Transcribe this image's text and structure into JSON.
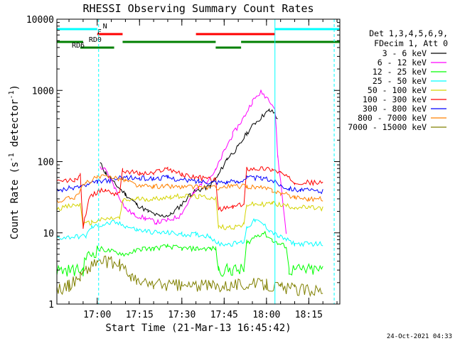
{
  "chart_data": {
    "type": "line",
    "title": "RHESSI Observing Summary Count Rates",
    "xlabel": "Start Time (21-Mar-13 16:45:42)",
    "ylabel_main": "Count Rate (s",
    "ylabel_sup1": "-1",
    "ylabel_mid": " detector",
    "ylabel_sup2": "-1",
    "ylabel_end": ")",
    "y_scale": "log",
    "ylim": [
      1,
      10000
    ],
    "xlim": [
      "16:45:42",
      "18:26:00"
    ],
    "grid": false,
    "y_ticks": [
      {
        "value": 1,
        "label": "1"
      },
      {
        "value": 10,
        "label": "10"
      },
      {
        "value": 100,
        "label": "100"
      },
      {
        "value": 1000,
        "label": "1000"
      },
      {
        "value": 10000,
        "label": "10000"
      }
    ],
    "x_ticks": [
      {
        "time": "17:00",
        "label": "17:00"
      },
      {
        "time": "17:15",
        "label": "17:15"
      },
      {
        "time": "17:30",
        "label": "17:30"
      },
      {
        "time": "17:45",
        "label": "17:45"
      },
      {
        "time": "18:00",
        "label": "18:00"
      },
      {
        "time": "18:15",
        "label": "18:15"
      }
    ],
    "legend_header": [
      "Det 1,3,4,5,6,9,",
      "FDecim 1, Att 0"
    ],
    "legend_placement": "right",
    "series": [
      {
        "name": "3 - 6 keV",
        "color": "#000000",
        "points": [
          [
            "16:45:42",
            null
          ],
          [
            "16:59:30",
            null
          ],
          [
            "17:01",
            95
          ],
          [
            "17:03",
            70
          ],
          [
            "17:06",
            50
          ],
          [
            "17:10",
            35
          ],
          [
            "17:14",
            25
          ],
          [
            "17:18",
            20
          ],
          [
            "17:22",
            17
          ],
          [
            "17:26",
            18
          ],
          [
            "17:30",
            25
          ],
          [
            "17:33",
            35
          ],
          [
            "17:36",
            40
          ],
          [
            "17:40",
            45
          ],
          [
            "17:43",
            65
          ],
          [
            "17:46",
            110
          ],
          [
            "17:50",
            160
          ],
          [
            "17:53",
            250
          ],
          [
            "17:56",
            350
          ],
          [
            "17:59",
            450
          ],
          [
            "18:01",
            520
          ],
          [
            "18:03",
            480
          ],
          [
            "18:04",
            380
          ],
          [
            "18:05",
            null
          ]
        ]
      },
      {
        "name": "6 - 12 keV",
        "color": "#ff00ff",
        "points": [
          [
            "16:45:42",
            null
          ],
          [
            "17:00",
            null
          ],
          [
            "17:01",
            85
          ],
          [
            "17:03",
            75
          ],
          [
            "17:06",
            45
          ],
          [
            "17:10",
            22
          ],
          [
            "17:13",
            18
          ],
          [
            "17:17",
            16
          ],
          [
            "17:21",
            14
          ],
          [
            "17:25",
            15
          ],
          [
            "17:29",
            17
          ],
          [
            "17:31",
            22
          ],
          [
            "17:34",
            35
          ],
          [
            "17:37",
            50
          ],
          [
            "17:39",
            55
          ],
          [
            "17:42",
            75
          ],
          [
            "17:45",
            140
          ],
          [
            "17:48",
            240
          ],
          [
            "17:52",
            420
          ],
          [
            "17:55",
            700
          ],
          [
            "17:58",
            950
          ],
          [
            "18:01",
            750
          ],
          [
            "18:03",
            550
          ],
          [
            "18:04",
            120
          ],
          [
            "18:07",
            10
          ],
          [
            "18:08",
            null
          ]
        ]
      },
      {
        "name": "12 - 25 keV",
        "color": "#00ff00",
        "points": [
          [
            "16:45:42",
            3
          ],
          [
            "16:55",
            3
          ],
          [
            "16:56",
            4.5
          ],
          [
            "17:01",
            6
          ],
          [
            "17:05",
            5.5
          ],
          [
            "17:10",
            5
          ],
          [
            "17:13",
            5.5
          ],
          [
            "17:16",
            6
          ],
          [
            "17:20",
            6
          ],
          [
            "17:25",
            6.5
          ],
          [
            "17:30",
            6
          ],
          [
            "17:35",
            6
          ],
          [
            "17:40",
            6
          ],
          [
            "17:42",
            6
          ],
          [
            "17:43",
            3
          ],
          [
            "17:48",
            3
          ],
          [
            "17:52",
            3
          ],
          [
            "17:53",
            7
          ],
          [
            "17:56",
            9
          ],
          [
            "17:59",
            10
          ],
          [
            "18:02",
            8
          ],
          [
            "18:04",
            7
          ],
          [
            "18:07",
            6.5
          ],
          [
            "18:08",
            3
          ],
          [
            "18:20",
            3
          ]
        ]
      },
      {
        "name": "25 - 50 keV",
        "color": "#00ffff",
        "points": [
          [
            "16:45:42",
            8.5
          ],
          [
            "16:56",
            9
          ],
          [
            "16:58",
            12
          ],
          [
            "17:02",
            13
          ],
          [
            "17:06",
            14
          ],
          [
            "17:10",
            12.5
          ],
          [
            "17:14",
            11
          ],
          [
            "17:18",
            10.5
          ],
          [
            "17:22",
            10
          ],
          [
            "17:26",
            10
          ],
          [
            "17:30",
            9.5
          ],
          [
            "17:35",
            9.5
          ],
          [
            "17:40",
            9
          ],
          [
            "17:43",
            7
          ],
          [
            "17:48",
            7
          ],
          [
            "17:52",
            7.5
          ],
          [
            "17:53",
            12
          ],
          [
            "17:56",
            15
          ],
          [
            "17:59",
            13
          ],
          [
            "18:01",
            11
          ],
          [
            "18:04",
            9
          ],
          [
            "18:07",
            8
          ],
          [
            "18:10",
            7
          ],
          [
            "18:20",
            7
          ]
        ]
      },
      {
        "name": "50 - 100 keV",
        "color": "#d4d400",
        "points": [
          [
            "16:45:42",
            22
          ],
          [
            "16:54",
            25
          ],
          [
            "16:55",
            13
          ],
          [
            "16:58",
            14
          ],
          [
            "17:01",
            15
          ],
          [
            "17:05",
            16
          ],
          [
            "17:08",
            16
          ],
          [
            "17:09",
            28
          ],
          [
            "17:14",
            30
          ],
          [
            "17:20",
            30
          ],
          [
            "17:26",
            32
          ],
          [
            "17:30",
            33
          ],
          [
            "17:36",
            32
          ],
          [
            "17:42",
            31
          ],
          [
            "17:43",
            12
          ],
          [
            "17:48",
            12
          ],
          [
            "17:52",
            13
          ],
          [
            "17:53",
            25
          ],
          [
            "17:58",
            25
          ],
          [
            "18:02",
            26
          ],
          [
            "18:04",
            25
          ],
          [
            "18:07",
            24
          ],
          [
            "18:10",
            23
          ],
          [
            "18:20",
            22
          ]
        ]
      },
      {
        "name": "100 - 300 keV",
        "color": "#ff0000",
        "points": [
          [
            "16:45:42",
            52
          ],
          [
            "16:52",
            55
          ],
          [
            "16:54",
            65
          ],
          [
            "16:55",
            12
          ],
          [
            "16:57",
            30
          ],
          [
            "17:00",
            38
          ],
          [
            "17:03",
            40
          ],
          [
            "17:06",
            35
          ],
          [
            "17:08",
            38
          ],
          [
            "17:09",
            75
          ],
          [
            "17:15",
            68
          ],
          [
            "17:20",
            68
          ],
          [
            "17:22",
            75
          ],
          [
            "17:25",
            80
          ],
          [
            "17:28",
            72
          ],
          [
            "17:30",
            65
          ],
          [
            "17:36",
            60
          ],
          [
            "17:42",
            55
          ],
          [
            "17:43",
            21
          ],
          [
            "17:48",
            23
          ],
          [
            "17:52",
            25
          ],
          [
            "17:53",
            80
          ],
          [
            "17:58",
            80
          ],
          [
            "18:02",
            78
          ],
          [
            "18:05",
            70
          ],
          [
            "18:08",
            58
          ],
          [
            "18:10",
            52
          ],
          [
            "18:20",
            50
          ]
        ]
      },
      {
        "name": "300 - 800 keV",
        "color": "#0000ff",
        "points": [
          [
            "16:45:42",
            40
          ],
          [
            "16:50",
            42
          ],
          [
            "16:54",
            45
          ],
          [
            "16:57",
            47
          ],
          [
            "17:00",
            52
          ],
          [
            "17:05",
            55
          ],
          [
            "17:09",
            60
          ],
          [
            "17:15",
            58
          ],
          [
            "17:20",
            58
          ],
          [
            "17:25",
            60
          ],
          [
            "17:30",
            55
          ],
          [
            "17:36",
            53
          ],
          [
            "17:42",
            52
          ],
          [
            "17:46",
            52
          ],
          [
            "17:50",
            52
          ],
          [
            "17:53",
            60
          ],
          [
            "17:58",
            58
          ],
          [
            "18:02",
            55
          ],
          [
            "18:05",
            47
          ],
          [
            "18:08",
            42
          ],
          [
            "18:12",
            40
          ],
          [
            "18:20",
            38
          ]
        ]
      },
      {
        "name": "800 - 7000 keV",
        "color": "#ff8000",
        "points": [
          [
            "16:45:42",
            28
          ],
          [
            "16:52",
            32
          ],
          [
            "16:56",
            50
          ],
          [
            "17:00",
            60
          ],
          [
            "17:05",
            62
          ],
          [
            "17:10",
            55
          ],
          [
            "17:15",
            45
          ],
          [
            "17:20",
            45
          ],
          [
            "17:25",
            45
          ],
          [
            "17:30",
            44
          ],
          [
            "17:36",
            44
          ],
          [
            "17:42",
            43
          ],
          [
            "17:48",
            45
          ],
          [
            "17:53",
            45
          ],
          [
            "17:58",
            43
          ],
          [
            "18:02",
            40
          ],
          [
            "18:05",
            36
          ],
          [
            "18:10",
            32
          ],
          [
            "18:15",
            30
          ],
          [
            "18:20",
            30
          ]
        ]
      },
      {
        "name": "7000 - 15000 keV",
        "color": "#808000",
        "points": [
          [
            "16:45:42",
            1.6
          ],
          [
            "16:50",
            1.8
          ],
          [
            "16:54",
            2.5
          ],
          [
            "16:56",
            3
          ],
          [
            "17:00",
            4
          ],
          [
            "17:05",
            3.8
          ],
          [
            "17:08",
            3.5
          ],
          [
            "17:12",
            2.5
          ],
          [
            "17:14",
            2
          ],
          [
            "17:20",
            1.9
          ],
          [
            "17:30",
            1.8
          ],
          [
            "17:40",
            1.8
          ],
          [
            "17:50",
            1.9
          ],
          [
            "18:00",
            1.9
          ],
          [
            "18:05",
            1.7
          ],
          [
            "18:10",
            1.6
          ],
          [
            "18:20",
            1.6
          ]
        ]
      }
    ],
    "state_bars": [
      {
        "name": "N",
        "color": "#00ffff",
        "row": 1,
        "label_at": "17:02",
        "segments": [
          [
            "16:45:42",
            "17:00"
          ],
          [
            "18:03",
            "18:26"
          ]
        ]
      },
      {
        "name": "F",
        "color": "#ff0000",
        "row": 2,
        "label_at": "17:00",
        "segments": [
          [
            "17:00",
            "17:09"
          ],
          [
            "17:35",
            "18:03"
          ]
        ]
      },
      {
        "name": "RD0",
        "color": "#008000",
        "row": 3,
        "label_at": "16:57",
        "segments": [
          [
            "16:45:42",
            "16:55"
          ],
          [
            "17:09",
            "17:42"
          ],
          [
            "17:51",
            "18:26"
          ]
        ]
      },
      {
        "name": "RD6",
        "color": "#008000",
        "row": 4,
        "label_at": "16:51",
        "segments": [
          [
            "16:54",
            "17:06"
          ],
          [
            "17:42",
            "17:51"
          ]
        ]
      }
    ],
    "vertical_markers": [
      {
        "time": "16:45:42",
        "color": "#00ffff",
        "dashed": false
      },
      {
        "time": "17:00:30",
        "color": "#00ffff",
        "dashed": true
      },
      {
        "time": "18:03",
        "color": "#00ffff",
        "dashed": false
      },
      {
        "time": "18:24",
        "color": "#00ffff",
        "dashed": true
      }
    ],
    "footer_date": "24-Oct-2021 04:33"
  }
}
